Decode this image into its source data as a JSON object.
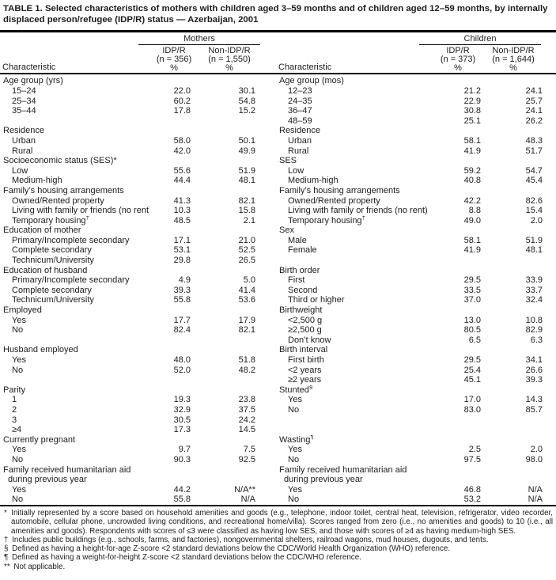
{
  "title": "TABLE 1. Selected characteristics of mothers with children aged 3–59 months and of children aged 12–59 months, by internally displaced person/refugee (IDP/R) status — Azerbaijan, 2001",
  "table": {
    "characteristic_label": "Characteristic",
    "percent_label": "%",
    "groups": [
      {
        "name": "Mothers",
        "col1": {
          "line1": "IDP/R",
          "line2": "(n = 356)"
        },
        "col2": {
          "line1": "Non-IDP/R",
          "line2": "(n = 1,550)"
        }
      },
      {
        "name": "Children",
        "col1": {
          "line1": "IDP/R",
          "line2": "(n = 373)"
        },
        "col2": {
          "line1": "Non-IDP/R",
          "line2": "(n = 1,644)"
        }
      }
    ],
    "rows": [
      {
        "l": {
          "label": "Age group (yrs)",
          "indent": 0
        },
        "r": {
          "label": "Age group (mos)",
          "indent": 0
        }
      },
      {
        "l": {
          "label": "15–24",
          "indent": 1,
          "v1": "22.0",
          "v2": "30.1"
        },
        "r": {
          "label": "12–23",
          "indent": 1,
          "v1": "21.2",
          "v2": "24.1"
        }
      },
      {
        "l": {
          "label": "25–34",
          "indent": 1,
          "v1": "60.2",
          "v2": "54.8"
        },
        "r": {
          "label": "24–35",
          "indent": 1,
          "v1": "22.9",
          "v2": "25.7"
        }
      },
      {
        "l": {
          "label": "35–44",
          "indent": 1,
          "v1": "17.8",
          "v2": "15.2"
        },
        "r": {
          "label": "36–47",
          "indent": 1,
          "v1": "30.8",
          "v2": "24.1"
        }
      },
      {
        "l": null,
        "r": {
          "label": "48–59",
          "indent": 1,
          "v1": "25.1",
          "v2": "26.2"
        }
      },
      {
        "l": {
          "label": "Residence",
          "indent": 0
        },
        "r": {
          "label": "Residence",
          "indent": 0
        }
      },
      {
        "l": {
          "label": "Urban",
          "indent": 1,
          "v1": "58.0",
          "v2": "50.1"
        },
        "r": {
          "label": "Urban",
          "indent": 1,
          "v1": "58.1",
          "v2": "48.3"
        }
      },
      {
        "l": {
          "label": "Rural",
          "indent": 1,
          "v1": "42.0",
          "v2": "49.9"
        },
        "r": {
          "label": "Rural",
          "indent": 1,
          "v1": "41.9",
          "v2": "51.7"
        }
      },
      {
        "l": {
          "label": "Socioeconomic status (SES)*",
          "indent": 0
        },
        "r": {
          "label": "SES",
          "indent": 0
        }
      },
      {
        "l": {
          "label": "Low",
          "indent": 1,
          "v1": "55.6",
          "v2": "51.9"
        },
        "r": {
          "label": "Low",
          "indent": 1,
          "v1": "59.2",
          "v2": "54.7"
        }
      },
      {
        "l": {
          "label": "Medium-high",
          "indent": 1,
          "v1": "44.4",
          "v2": "48.1"
        },
        "r": {
          "label": "Medium-high",
          "indent": 1,
          "v1": "40.8",
          "v2": "45.4"
        }
      },
      {
        "l": {
          "label": "Family’s housing arrangements",
          "indent": 0
        },
        "r": {
          "label": "Family’s housing arrangements",
          "indent": 0
        }
      },
      {
        "l": {
          "label": "Owned/Rented property",
          "indent": 1,
          "v1": "41.3",
          "v2": "82.1"
        },
        "r": {
          "label": "Owned/Rented property",
          "indent": 1,
          "v1": "42.2",
          "v2": "82.6"
        }
      },
      {
        "l": {
          "label": "Living with family or friends (no rent)",
          "indent": 1,
          "v1": "10.3",
          "v2": "15.8"
        },
        "r": {
          "label": "Living with family or friends (no rent)",
          "indent": 1,
          "v1": "8.8",
          "v2": "15.4"
        }
      },
      {
        "l": {
          "label": "Temporary housing",
          "sup": "†",
          "indent": 1,
          "v1": "48.5",
          "v2": "2.1"
        },
        "r": {
          "label": "Temporary housing",
          "sup": "†",
          "indent": 1,
          "v1": "49.0",
          "v2": "2.0"
        }
      },
      {
        "l": {
          "label": "Education of mother",
          "indent": 0
        },
        "r": {
          "label": "Sex",
          "indent": 0
        }
      },
      {
        "l": {
          "label": "Primary/Incomplete secondary",
          "indent": 1,
          "v1": "17.1",
          "v2": "21.0"
        },
        "r": {
          "label": "Male",
          "indent": 1,
          "v1": "58.1",
          "v2": "51.9"
        }
      },
      {
        "l": {
          "label": "Complete secondary",
          "indent": 1,
          "v1": "53.1",
          "v2": "52.5"
        },
        "r": {
          "label": "Female",
          "indent": 1,
          "v1": "41.9",
          "v2": "48.1"
        }
      },
      {
        "l": {
          "label": "Technicum/University",
          "indent": 1,
          "v1": "29.8",
          "v2": "26.5"
        },
        "r": null
      },
      {
        "l": {
          "label": "Education of husband",
          "indent": 0
        },
        "r": {
          "label": "Birth order",
          "indent": 0
        }
      },
      {
        "l": {
          "label": "Primary/Incomplete secondary",
          "indent": 1,
          "v1": "4.9",
          "v2": "5.0"
        },
        "r": {
          "label": "First",
          "indent": 1,
          "v1": "29.5",
          "v2": "33.9"
        }
      },
      {
        "l": {
          "label": "Complete secondary",
          "indent": 1,
          "v1": "39.3",
          "v2": "41.4"
        },
        "r": {
          "label": "Second",
          "indent": 1,
          "v1": "33.5",
          "v2": "33.7"
        }
      },
      {
        "l": {
          "label": "Technicum/University",
          "indent": 1,
          "v1": "55.8",
          "v2": "53.6"
        },
        "r": {
          "label": "Third or higher",
          "indent": 1,
          "v1": "37.0",
          "v2": "32.4"
        }
      },
      {
        "l": {
          "label": "Employed",
          "indent": 0
        },
        "r": {
          "label": "Birthweight",
          "indent": 0
        }
      },
      {
        "l": {
          "label": "Yes",
          "indent": 1,
          "v1": "17.7",
          "v2": "17.9"
        },
        "r": {
          "label": "<2,500 g",
          "indent": 1,
          "v1": "13.0",
          "v2": "10.8"
        }
      },
      {
        "l": {
          "label": "No",
          "indent": 1,
          "v1": "82.4",
          "v2": "82.1"
        },
        "r": {
          "label": "≥2,500 g",
          "indent": 1,
          "v1": "80.5",
          "v2": "82.9"
        }
      },
      {
        "l": null,
        "r": {
          "label": "Don’t know",
          "indent": 1,
          "v1": "6.5",
          "v2": "6.3"
        }
      },
      {
        "l": {
          "label": "Husband employed",
          "indent": 0
        },
        "r": {
          "label": "Birth interval",
          "indent": 0
        }
      },
      {
        "l": {
          "label": "Yes",
          "indent": 1,
          "v1": "48.0",
          "v2": "51.8"
        },
        "r": {
          "label": "First birth",
          "indent": 1,
          "v1": "29.5",
          "v2": "34.1"
        }
      },
      {
        "l": {
          "label": "No",
          "indent": 1,
          "v1": "52.0",
          "v2": "48.2"
        },
        "r": {
          "label": "<2 years",
          "indent": 1,
          "v1": "25.4",
          "v2": "26.6"
        }
      },
      {
        "l": null,
        "r": {
          "label": "≥2 years",
          "indent": 1,
          "v1": "45.1",
          "v2": "39.3"
        }
      },
      {
        "l": {
          "label": "Parity",
          "indent": 0
        },
        "r": {
          "label": "Stunted",
          "sup": "§",
          "indent": 0
        }
      },
      {
        "l": {
          "label": "1",
          "indent": 1,
          "v1": "19.3",
          "v2": "23.8"
        },
        "r": {
          "label": "Yes",
          "indent": 1,
          "v1": "17.0",
          "v2": "14.3"
        }
      },
      {
        "l": {
          "label": "2",
          "indent": 1,
          "v1": "32.9",
          "v2": "37.5"
        },
        "r": {
          "label": "No",
          "indent": 1,
          "v1": "83.0",
          "v2": "85.7"
        }
      },
      {
        "l": {
          "label": "3",
          "indent": 1,
          "v1": "30.5",
          "v2": "24.2"
        },
        "r": null
      },
      {
        "l": {
          "label": "≥4",
          "indent": 1,
          "v1": "17.3",
          "v2": "14.5"
        },
        "r": null
      },
      {
        "l": {
          "label": "Currently pregnant",
          "indent": 0
        },
        "r": {
          "label": "Wasting",
          "sup": "¶",
          "indent": 0
        }
      },
      {
        "l": {
          "label": "Yes",
          "indent": 1,
          "v1": "9.7",
          "v2": "7.5"
        },
        "r": {
          "label": "Yes",
          "indent": 1,
          "v1": "2.5",
          "v2": "2.0"
        }
      },
      {
        "l": {
          "label": "No",
          "indent": 1,
          "v1": "90.3",
          "v2": "92.5"
        },
        "r": {
          "label": "No",
          "indent": 1,
          "v1": "97.5",
          "v2": "98.0"
        }
      },
      {
        "l": {
          "label": "Family received humanitarian aid",
          "indent": 0
        },
        "r": {
          "label": "Family received humanitarian aid",
          "indent": 0
        }
      },
      {
        "l": {
          "label": "during previous year",
          "indent": 2
        },
        "r": {
          "label": "during previous year",
          "indent": 2
        }
      },
      {
        "l": {
          "label": "Yes",
          "indent": 1,
          "v1": "44.2",
          "v2": "N/A**"
        },
        "r": {
          "label": "Yes",
          "indent": 1,
          "v1": "46.8",
          "v2": "N/A"
        }
      },
      {
        "l": {
          "label": "No",
          "indent": 1,
          "v1": "55.8",
          "v2": "N/A"
        },
        "r": {
          "label": "No",
          "indent": 1,
          "v1": "53.2",
          "v2": "N/A"
        }
      }
    ]
  },
  "footnotes": [
    {
      "marker": "*",
      "text": "Initially represented by a score based on household amenities and goods (e.g., telephone, indoor toilet, central heat, television, refrigerator, video recorder, automobile, cellular phone, uncrowded living conditions, and recreational home/villa). Scores ranged from zero (i.e., no amenities and goods) to 10 (i.e., all amenities and goods). Respondents with scores of ≤3 were classified as having low SES, and those with scores of ≥4 as having medium-high SES."
    },
    {
      "marker": "†",
      "text": "Includes public buildings (e.g., schools, farms, and factories), nongovernmental shelters, railroad wagons, mud houses, dugouts, and tents."
    },
    {
      "marker": "§",
      "text": "Defined as having a height-for-age Z-score <2 standard deviations below the CDC/World Health Organization (WHO) reference."
    },
    {
      "marker": "¶",
      "text": "Defined as having a weight-for-height Z-score <2 standard deviations below the CDC/WHO reference."
    },
    {
      "marker": "**",
      "text": "Not applicable."
    }
  ]
}
